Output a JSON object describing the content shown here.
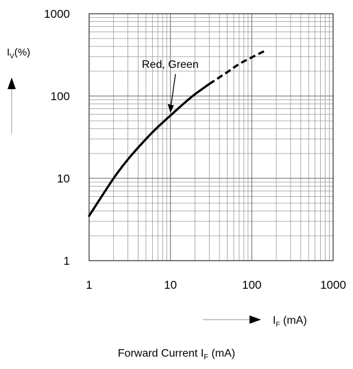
{
  "chart_data": {
    "type": "line",
    "x_scale": "log",
    "y_scale": "log",
    "xlim": [
      1,
      1000
    ],
    "ylim": [
      1,
      1000
    ],
    "grid": true,
    "x_ticks": [
      "1",
      "10",
      "100",
      "1000"
    ],
    "y_ticks": [
      "1",
      "10",
      "100",
      "1000"
    ],
    "ylabel": {
      "main": "I",
      "sub": "V",
      "rest": "(%)"
    },
    "xlabel": {
      "main": "I",
      "sub": "F",
      "rest": " (mA)"
    },
    "caption": {
      "pre": "Forward Current I",
      "sub": "F",
      "post": " (mA)"
    },
    "annotation": {
      "text": "Red, Green",
      "points_to": [
        10,
        60
      ]
    },
    "series": [
      {
        "name": "Red, Green",
        "color": "#000000",
        "solid": {
          "x": [
            1,
            2,
            3,
            5,
            7,
            10,
            15,
            20,
            30
          ],
          "y": [
            3.5,
            10,
            17,
            30,
            42,
            58,
            83,
            105,
            140
          ]
        },
        "dashed": {
          "x": [
            30,
            50,
            70,
            100,
            150
          ],
          "y": [
            140,
            195,
            245,
            295,
            360
          ]
        }
      }
    ]
  }
}
